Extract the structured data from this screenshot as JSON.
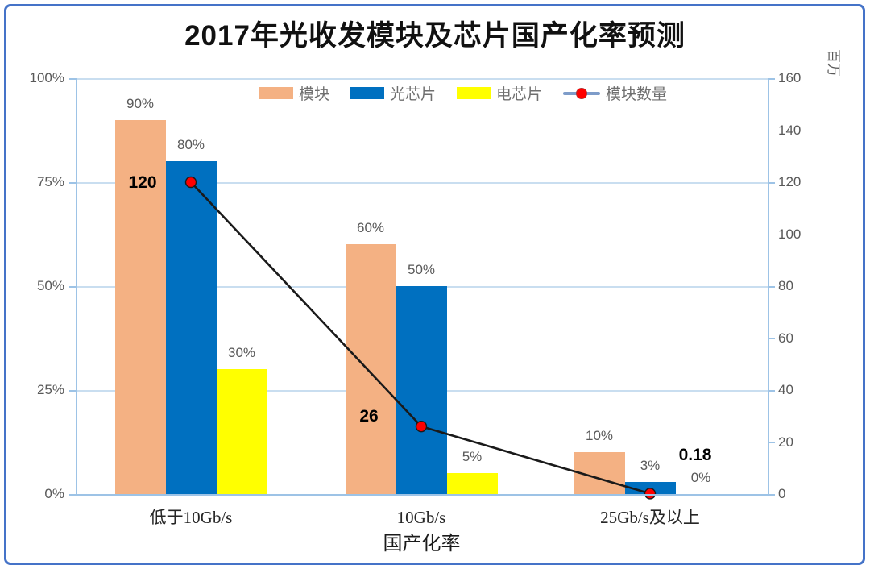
{
  "title": "2017年光收发模块及芯片国产化率预测",
  "chart_data": {
    "type": "bar+line",
    "title": "2017年光收发模块及芯片国产化率预测",
    "categories": [
      "低于10Gb/s",
      "10Gb/s",
      "25Gb/s及以上"
    ],
    "xlabel": "国产化率",
    "series": [
      {
        "name": "模块",
        "type": "bar",
        "axis": "left",
        "values": [
          90,
          60,
          10
        ],
        "labels": [
          "90%",
          "60%",
          "10%"
        ],
        "color": "#F4B183"
      },
      {
        "name": "光芯片",
        "type": "bar",
        "axis": "left",
        "values": [
          80,
          50,
          3
        ],
        "labels": [
          "80%",
          "50%",
          "3%"
        ],
        "color": "#0070C0"
      },
      {
        "name": "电芯片",
        "type": "bar",
        "axis": "left",
        "values": [
          30,
          5,
          0
        ],
        "labels": [
          "30%",
          "5%",
          "0%"
        ],
        "color": "#FFFF00"
      },
      {
        "name": "模块数量",
        "type": "line",
        "axis": "right",
        "values": [
          120,
          26,
          0.18
        ],
        "labels": [
          "120",
          "26",
          "0.18"
        ],
        "color": "#1A1A1A",
        "marker_color": "#FF0000",
        "legend_line_color": "#7E9CC9"
      }
    ],
    "left_axis": {
      "min": 0,
      "max": 100,
      "ticks": [
        "100%",
        "75%",
        "50%",
        "25%",
        "0%"
      ],
      "tick_values": [
        100,
        75,
        50,
        25,
        0
      ]
    },
    "right_axis": {
      "min": 0,
      "max": 160,
      "ticks": [
        "160",
        "140",
        "120",
        "100",
        "80",
        "60",
        "40",
        "20",
        "0"
      ],
      "tick_values": [
        160,
        140,
        120,
        100,
        80,
        60,
        40,
        20,
        0
      ],
      "unit_label": "百万"
    },
    "legend_position": "top-center",
    "grid": "horizontal-only"
  },
  "colors": {
    "frame_border": "#4573C8",
    "background": "#FFFFFF",
    "gridline": "#C9DEF0",
    "axis_line": "#9DC3E6",
    "tick_label": "#595959",
    "data_label": "#595959",
    "emphasis_label": "#000000",
    "legend_text": "#6F6F6F",
    "title_text": "#111111"
  }
}
